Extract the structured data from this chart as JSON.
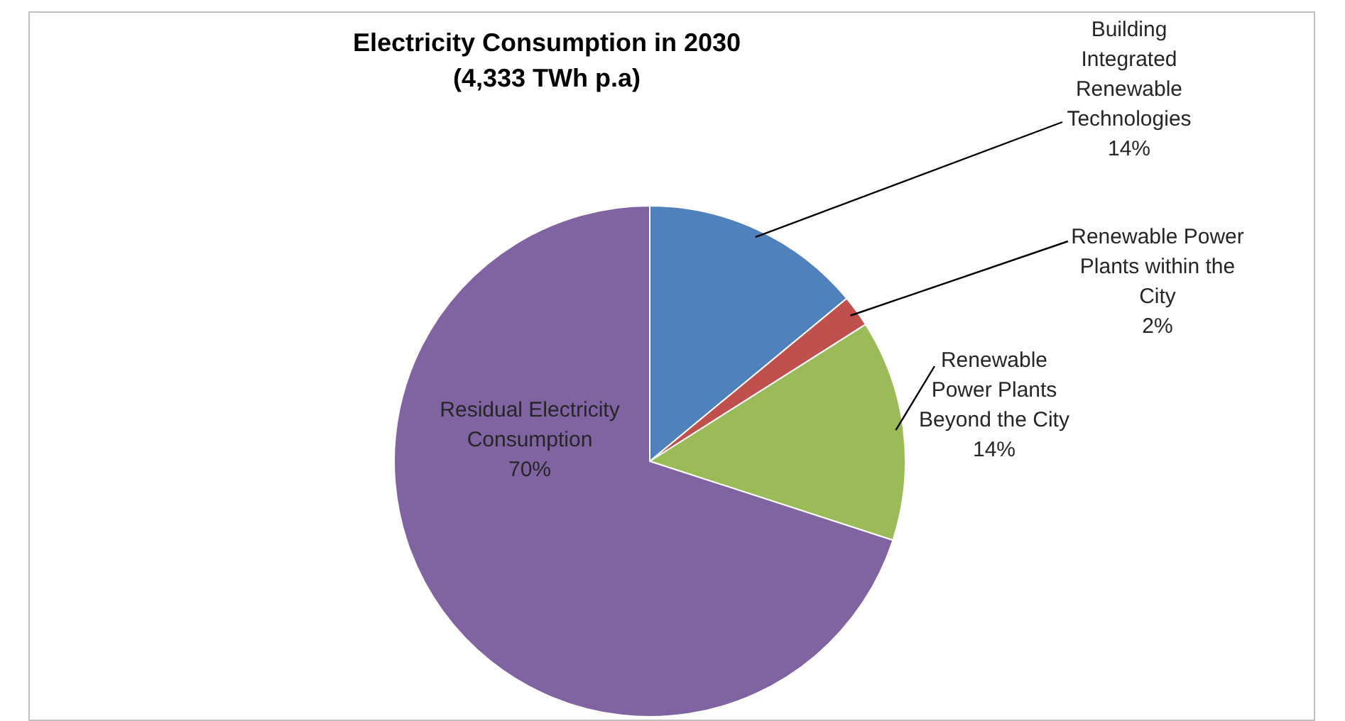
{
  "chart_data": {
    "type": "pie",
    "title": "Electricity Consumption in 2030\n(4,333 TWh p.a)",
    "categories": [
      "Building Integrated Renewable Technologies",
      "Renewable Power Plants within the City",
      "Renewable Power Plants Beyond the City",
      "Residual Electricity Consumption"
    ],
    "values": [
      14,
      2,
      14,
      70
    ],
    "value_labels": [
      "14%",
      "2%",
      "14%",
      "70%"
    ],
    "colors": [
      "#4f81bd",
      "#c0504d",
      "#9bbb59",
      "#8064a2"
    ],
    "legend": false
  }
}
